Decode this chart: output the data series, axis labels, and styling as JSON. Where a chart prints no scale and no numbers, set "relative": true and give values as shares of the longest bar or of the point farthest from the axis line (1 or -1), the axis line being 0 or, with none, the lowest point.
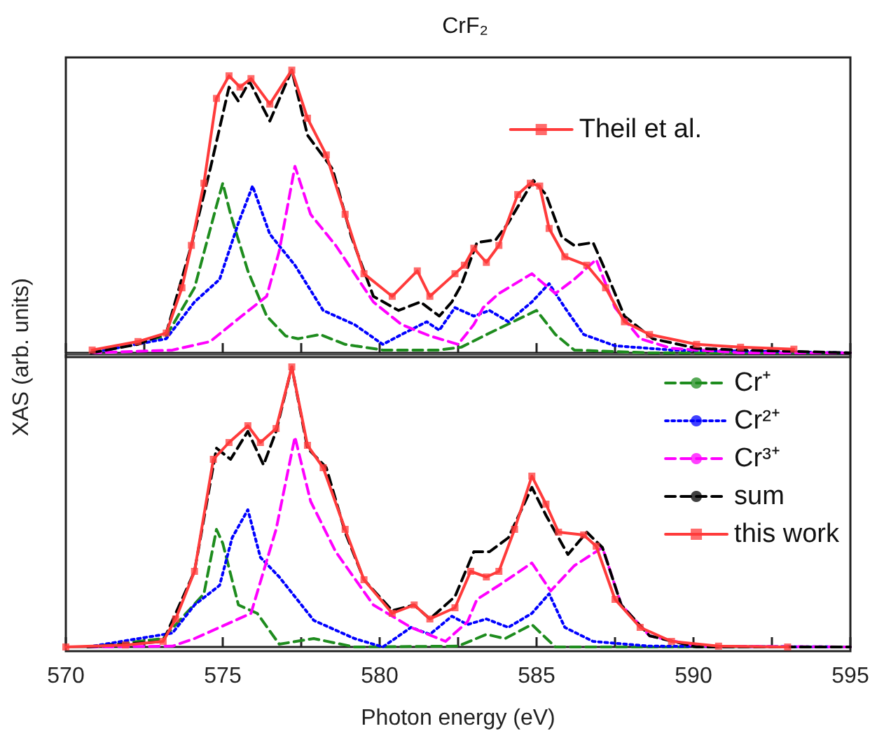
{
  "chart_data": [
    {
      "type": "line",
      "title": "CrF₂",
      "ylabel": "XAS (arb. units)",
      "relative": true,
      "xlim": [
        570,
        595
      ],
      "xticks": [
        570,
        575,
        580,
        585,
        590,
        595
      ],
      "tick_labels": false,
      "legend": "top right",
      "grid": false,
      "marker": "none",
      "series": [
        {
          "color": "#1e8c1e",
          "line_style": "dashed",
          "x": [
            570.8,
            573.2,
            574.1,
            574.8,
            575.0,
            575.25,
            575.8,
            576.4,
            577.0,
            577.4,
            578.1,
            578.9,
            580.1,
            581.9,
            582.6,
            583.5,
            585.0,
            585.6,
            586.2,
            588.6,
            595.0
          ],
          "values": [
            0,
            0.06,
            0.23,
            0.52,
            0.6,
            0.49,
            0.29,
            0.13,
            0.06,
            0.05,
            0.065,
            0.03,
            0.01,
            0.01,
            0.02,
            0.07,
            0.15,
            0.065,
            0.01,
            0,
            0
          ]
        },
        {
          "color": "#0000ff",
          "line_style": "dotted",
          "x": [
            570.8,
            573.2,
            574.1,
            574.9,
            575.5,
            575.95,
            576.5,
            577.3,
            578.2,
            579.2,
            580.1,
            580.7,
            581.5,
            581.9,
            582.4,
            583.0,
            583.5,
            584.1,
            584.85,
            585.4,
            585.9,
            586.5,
            587.5,
            589.3,
            595.0
          ],
          "values": [
            0,
            0.05,
            0.18,
            0.26,
            0.46,
            0.59,
            0.42,
            0.31,
            0.15,
            0.1,
            0.03,
            0.065,
            0.11,
            0.08,
            0.16,
            0.13,
            0.15,
            0.11,
            0.18,
            0.245,
            0.16,
            0.065,
            0.025,
            0.01,
            0
          ]
        },
        {
          "color": "#ff00ff",
          "line_style": "dashed",
          "x": [
            570.8,
            573.4,
            574.6,
            575.6,
            576.4,
            576.8,
            577.3,
            577.8,
            578.6,
            579.8,
            580.7,
            581.6,
            582.5,
            583.0,
            583.3,
            583.8,
            584.85,
            585.6,
            586.2,
            586.9,
            587.5,
            588.3,
            589.3,
            591.5,
            595.0
          ],
          "values": [
            0,
            0.01,
            0.04,
            0.13,
            0.2,
            0.36,
            0.66,
            0.49,
            0.38,
            0.18,
            0.1,
            0.06,
            0.03,
            0.1,
            0.16,
            0.21,
            0.28,
            0.21,
            0.26,
            0.33,
            0.16,
            0.05,
            0.016,
            0,
            0
          ]
        },
        {
          "color": "#000000",
          "line_style": "dashed",
          "x": [
            570.8,
            572.3,
            573.2,
            574.0,
            574.6,
            575.2,
            575.5,
            575.85,
            576.5,
            577.2,
            577.7,
            578.5,
            579.1,
            579.8,
            580.6,
            581.3,
            581.9,
            582.3,
            582.6,
            583.1,
            583.7,
            584.1,
            584.9,
            585.3,
            585.8,
            586.2,
            586.8,
            587.2,
            587.8,
            588.7,
            590.1,
            591.5,
            595.0
          ],
          "values": [
            0,
            0.03,
            0.07,
            0.38,
            0.65,
            0.94,
            0.89,
            0.96,
            0.82,
            1.0,
            0.77,
            0.65,
            0.41,
            0.2,
            0.15,
            0.18,
            0.13,
            0.18,
            0.24,
            0.39,
            0.4,
            0.46,
            0.61,
            0.56,
            0.41,
            0.38,
            0.39,
            0.29,
            0.13,
            0.05,
            0.016,
            0.01,
            0
          ]
        },
        {
          "name": "Theil et al.",
          "color": "#ff3b3b",
          "line_style": "solid",
          "marker": "square",
          "x": [
            570.84,
            572.3,
            573.2,
            573.7,
            574.0,
            574.4,
            574.8,
            575.2,
            575.55,
            575.9,
            576.5,
            577.2,
            577.7,
            578.3,
            578.9,
            579.5,
            580.4,
            581.2,
            581.6,
            582.4,
            582.7,
            583.0,
            583.4,
            583.8,
            584.4,
            584.8,
            585.1,
            585.4,
            585.9,
            586.6,
            587.2,
            587.8,
            588.6,
            590.1,
            591.5,
            593.2
          ],
          "values": [
            0.01,
            0.04,
            0.07,
            0.23,
            0.38,
            0.6,
            0.9,
            0.98,
            0.94,
            0.97,
            0.88,
            1.0,
            0.83,
            0.7,
            0.49,
            0.28,
            0.2,
            0.29,
            0.2,
            0.28,
            0.31,
            0.37,
            0.32,
            0.38,
            0.56,
            0.6,
            0.59,
            0.44,
            0.34,
            0.31,
            0.23,
            0.11,
            0.065,
            0.03,
            0.02,
            0.013
          ]
        }
      ]
    },
    {
      "type": "line",
      "xlabel": "Photon energy (eV)",
      "relative": true,
      "xlim": [
        570,
        595
      ],
      "xticks": [
        570,
        575,
        580,
        585,
        590,
        595
      ],
      "legend": "top right",
      "grid": false,
      "marker": "none",
      "series": [
        {
          "name": "Cr⁺",
          "color": "#1e8c1e",
          "line_style": "dashed",
          "x": [
            570.7,
            573.1,
            574.4,
            574.8,
            575.0,
            575.5,
            576.1,
            576.8,
            577.9,
            579.2,
            582.5,
            583.4,
            584.0,
            584.85,
            585.6,
            587.1,
            595.0
          ],
          "values": [
            0,
            0.03,
            0.19,
            0.42,
            0.37,
            0.15,
            0.12,
            0.01,
            0.03,
            0,
            0.003,
            0.045,
            0.03,
            0.08,
            0,
            0,
            0
          ]
        },
        {
          "name": "Cr²⁺",
          "color": "#0000ff",
          "line_style": "dotted",
          "x": [
            570.7,
            573.4,
            574.1,
            574.9,
            575.3,
            575.8,
            576.2,
            576.8,
            577.9,
            579.2,
            580.1,
            581.0,
            581.6,
            582.3,
            582.8,
            583.4,
            584.1,
            584.85,
            585.4,
            585.9,
            586.8,
            588.6,
            595.0
          ],
          "values": [
            0,
            0.05,
            0.15,
            0.22,
            0.39,
            0.49,
            0.32,
            0.25,
            0.095,
            0.03,
            0,
            0.07,
            0.045,
            0.11,
            0.08,
            0.1,
            0.07,
            0.12,
            0.19,
            0.07,
            0.02,
            0.003,
            0
          ]
        },
        {
          "name": "Cr³⁺",
          "color": "#ff00ff",
          "line_style": "dashed",
          "x": [
            570.7,
            573.4,
            574.1,
            575.9,
            576.7,
            577.3,
            577.8,
            578.6,
            579.8,
            581.0,
            582.1,
            582.8,
            583.1,
            583.8,
            584.85,
            585.45,
            586.2,
            587.1,
            587.7,
            588.6,
            590.1,
            595.0
          ],
          "values": [
            0,
            0.003,
            0.03,
            0.12,
            0.42,
            0.75,
            0.52,
            0.34,
            0.15,
            0.07,
            0.02,
            0.09,
            0.17,
            0.22,
            0.3,
            0.2,
            0.29,
            0.355,
            0.15,
            0.04,
            0.003,
            0
          ]
        },
        {
          "name": "sum",
          "color": "#000000",
          "line_style": "dashed",
          "x": [
            570.7,
            573.1,
            574.1,
            574.8,
            575.25,
            575.8,
            576.3,
            576.7,
            577.2,
            577.7,
            578.3,
            578.9,
            579.5,
            580.4,
            581.1,
            581.6,
            582.4,
            583.0,
            583.5,
            584.1,
            584.85,
            585.3,
            586.0,
            586.6,
            587.1,
            587.7,
            588.6,
            590.1,
            595.0
          ],
          "values": [
            0,
            0.02,
            0.27,
            0.71,
            0.67,
            0.77,
            0.65,
            0.77,
            1.0,
            0.71,
            0.64,
            0.41,
            0.24,
            0.13,
            0.15,
            0.1,
            0.18,
            0.34,
            0.34,
            0.39,
            0.57,
            0.47,
            0.33,
            0.41,
            0.355,
            0.15,
            0.04,
            0,
            0
          ]
        },
        {
          "name": "this work",
          "color": "#ff3b3b",
          "line_style": "solid",
          "marker": "square",
          "x": [
            570.0,
            571.9,
            573.1,
            573.5,
            574.1,
            574.7,
            575.2,
            575.8,
            576.2,
            576.7,
            577.2,
            577.7,
            578.2,
            578.9,
            579.5,
            580.4,
            581.1,
            581.6,
            582.4,
            582.9,
            583.4,
            583.8,
            584.3,
            584.85,
            585.3,
            585.7,
            586.5,
            586.9,
            587.5,
            588.3,
            589.3,
            590.8,
            593.0
          ],
          "values": [
            0,
            0.007,
            0.02,
            0.1,
            0.27,
            0.67,
            0.73,
            0.79,
            0.73,
            0.78,
            1.0,
            0.72,
            0.64,
            0.42,
            0.24,
            0.12,
            0.15,
            0.1,
            0.14,
            0.27,
            0.25,
            0.27,
            0.42,
            0.61,
            0.51,
            0.41,
            0.4,
            0.36,
            0.17,
            0.07,
            0.02,
            0.003,
            0
          ]
        }
      ]
    }
  ]
}
